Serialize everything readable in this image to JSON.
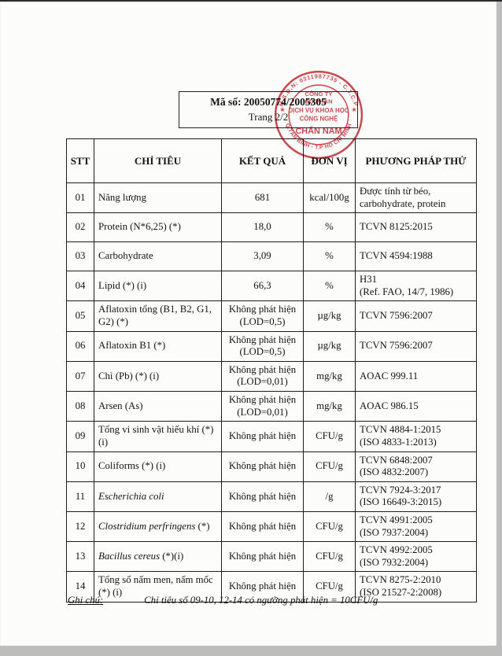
{
  "header": {
    "ma_so_label": "Mã số:",
    "ma_so_value": "20050774/2005305",
    "page_label": "Trang 2/2"
  },
  "stamp": {
    "arc_top": "M.S.Đ.N: 0311987735 - C.T.C.P",
    "arc_bottom": "Q.TÂN BÌNH - T.P HỒ CHÍ MINH",
    "star": "★",
    "center_lines": [
      "CÔNG TY",
      "CỔ PHẦN",
      "DỊCH VỤ KHOA HỌC",
      "CÔNG NGHỆ",
      "CHẤN NAM"
    ],
    "color": "#c8363d"
  },
  "table": {
    "headers": [
      "STT",
      "CHỈ TIÊU",
      "KẾT QUẢ",
      "ĐƠN VỊ",
      "PHƯƠNG PHÁP THỬ"
    ],
    "rows": [
      {
        "stt": "01",
        "name": "Năng lượng",
        "result": [
          "681"
        ],
        "unit": "kcal/100g",
        "method": [
          "Được tính từ béo,",
          "carbohydrate, protein"
        ]
      },
      {
        "stt": "02",
        "name": "Protein (N*6,25) (*)",
        "result": [
          "18,0"
        ],
        "unit": "%",
        "method": [
          "TCVN 8125:2015"
        ]
      },
      {
        "stt": "03",
        "name": "Carbohydrate",
        "result": [
          "3,09"
        ],
        "unit": "%",
        "method": [
          "TCVN 4594:1988"
        ]
      },
      {
        "stt": "04",
        "name": "Lipid (*) (i)",
        "result": [
          "66,3"
        ],
        "unit": "%",
        "method": [
          "H31",
          "(Ref. FAO, 14/7, 1986)"
        ]
      },
      {
        "stt": "05",
        "name": "Aflatoxin tổng (B1, B2, G1, G2) (*)",
        "result": [
          "Không phát hiện",
          "(LOD=0,5)"
        ],
        "unit": "µg/kg",
        "method": [
          "TCVN 7596:2007"
        ]
      },
      {
        "stt": "06",
        "name": "Aflatoxin B1 (*)",
        "result": [
          "Không phát hiện",
          "(LOD=0,5)"
        ],
        "unit": "µg/kg",
        "method": [
          "TCVN 7596:2007"
        ]
      },
      {
        "stt": "07",
        "name": "Chì (Pb) (*) (i)",
        "result": [
          "Không phát hiện",
          "(LOD=0,01)"
        ],
        "unit": "mg/kg",
        "method": [
          "AOAC 999.11"
        ]
      },
      {
        "stt": "08",
        "name": "Arsen (As)",
        "result": [
          "Không phát hiện",
          "(LOD=0,01)"
        ],
        "unit": "mg/kg",
        "method": [
          "AOAC 986.15"
        ]
      },
      {
        "stt": "09",
        "name": "Tổng vi sinh vật hiếu khí  (*) (i)",
        "result": [
          "Không phát hiện"
        ],
        "unit": "CFU/g",
        "method": [
          "TCVN 4884-1:2015",
          "(ISO 4833-1:2013)"
        ]
      },
      {
        "stt": "10",
        "name": "Coliforms (*) (i)",
        "result": [
          "Không phát hiện"
        ],
        "unit": "CFU/g",
        "method": [
          "TCVN 6848:2007",
          "(ISO 4832:2007)"
        ]
      },
      {
        "stt": "11",
        "name_italic": "Escherichia  coli",
        "name_suffix": "",
        "result": [
          "Không phát hiện"
        ],
        "unit": "/g",
        "method": [
          "TCVN 7924-3:2017",
          "(ISO 16649-3:2015)"
        ]
      },
      {
        "stt": "12",
        "name_italic": "Clostridium perfringens",
        "name_suffix": " (*)",
        "result": [
          "Không phát hiện"
        ],
        "unit": "CFU/g",
        "method": [
          "TCVN 4991:2005",
          "(ISO 7937:2004)"
        ]
      },
      {
        "stt": "13",
        "name_italic": "Bacillus cereus",
        "name_suffix": " (*)(i)",
        "result": [
          "Không phát hiện"
        ],
        "unit": "CFU/g",
        "method": [
          "TCVN 4992:2005",
          "(ISO 7932:2004)"
        ]
      },
      {
        "stt": "14",
        "name": "Tổng số nấm men, nấm mốc (*) (i)",
        "result": [
          "Không phát hiện"
        ],
        "unit": "CFU/g",
        "method": [
          "TCVN 8275-2:2010",
          "(ISO 21527-2:2008)"
        ]
      }
    ]
  },
  "footer": {
    "label": "Ghi chú:",
    "note": "Chỉ tiêu số 09-10, 12-14 có ngưỡng phát hiện = 10CFU/g"
  }
}
